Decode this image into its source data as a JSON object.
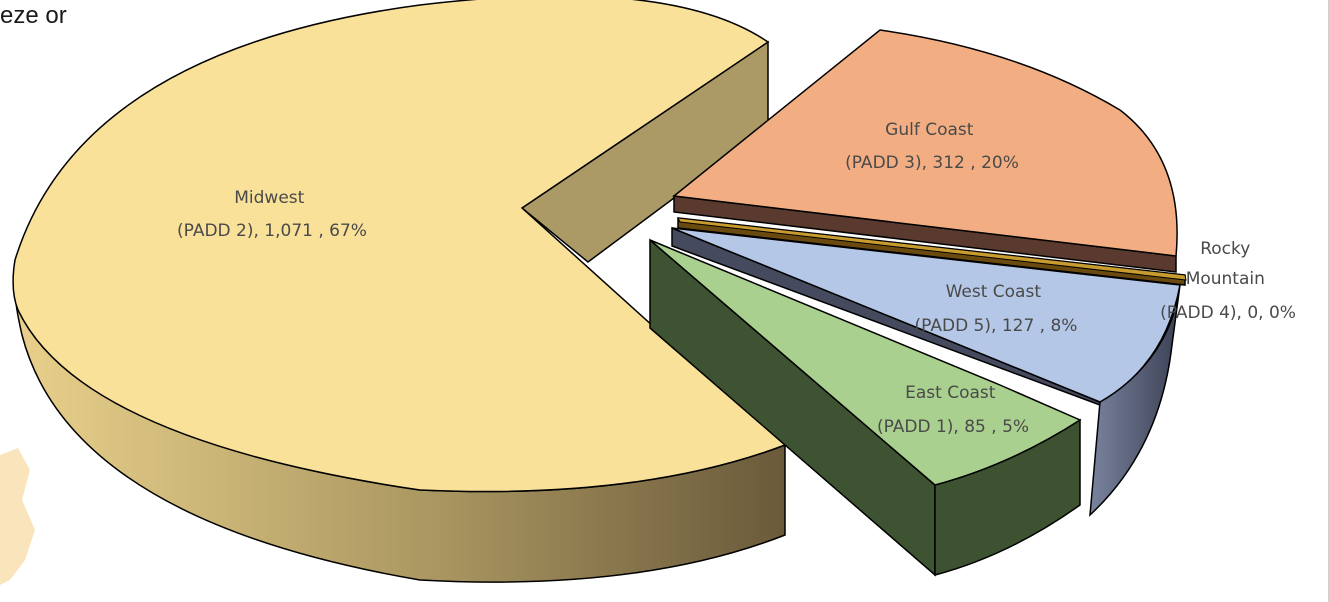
{
  "background_text": "eze or",
  "chart_data": {
    "type": "pie",
    "style": "3d-exploded",
    "categories": [
      "Midwest (PADD 2)",
      "Gulf Coast (PADD 3)",
      "Rocky Mountain (PADD 4)",
      "West Coast (PADD 5)",
      "East Coast (PADD 1)"
    ],
    "values": [
      1071,
      312,
      0,
      127,
      85
    ],
    "percentages": [
      67,
      20,
      0,
      8,
      5
    ],
    "labels": [
      [
        "Midwest",
        "(PADD 2),  1,071 , 67%"
      ],
      [
        "Gulf Coast",
        "(PADD 3),  312 , 20%"
      ],
      [
        "Rocky",
        "Mountain",
        "(PADD 4), 0, 0%"
      ],
      [
        "West Coast",
        "(PADD 5),  127 , 8%"
      ],
      [
        "East Coast",
        "(PADD 1),  85 , 5%"
      ]
    ],
    "colors": {
      "midwest_top": "#f9e19a",
      "midwest_side": "#c9b16d",
      "gulf_top": "#f2ae82",
      "gulf_side": "#5a3a2e",
      "rocky_top": "#c79b2e",
      "rocky_side": "#6b4a10",
      "west_top": "#b4c7e6",
      "west_side": "#454a5e",
      "east_top": "#a9d08e",
      "east_side": "#3c5230"
    }
  }
}
